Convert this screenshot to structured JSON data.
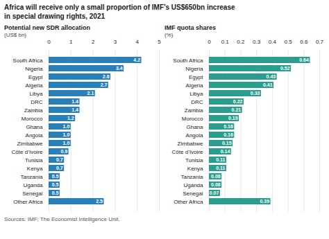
{
  "title": "Africa will receive only a small proportion of IMF’s US$650bn increase\nin special drawing rights, 2021",
  "source": "Sources: IMF; The Economist Intelligence Unit.",
  "chart_data": [
    {
      "type": "bar",
      "orientation": "horizontal",
      "title": "Potential new SDR allocation",
      "subtitle": "(US$ bn)",
      "categories": [
        "South Africa",
        "Nigeria",
        "Egypt",
        "Algeria",
        "Libya",
        "DRC",
        "Zambia",
        "Morocco",
        "Ghana",
        "Angola",
        "Zimbabwe",
        "Côte d’Ivoire",
        "Tunisia",
        "Kenya",
        "Tanzania",
        "Uganda",
        "Senegal",
        "Other Africa"
      ],
      "values": [
        4.2,
        3.4,
        2.8,
        2.7,
        2.1,
        1.4,
        1.4,
        1.2,
        1.0,
        1.0,
        1.0,
        0.9,
        0.7,
        0.7,
        0.5,
        0.5,
        0.5,
        2.5
      ],
      "value_labels": [
        "4.2",
        "3.4",
        "2.8",
        "2.7",
        "2.1",
        "1.4",
        "1.4",
        "1.2",
        "1.0",
        "1.0",
        "1.0",
        "0.9",
        "0.7",
        "0.7",
        "0.5",
        "0.5",
        "0.5",
        "2.5"
      ],
      "data_labels": true,
      "color": "#2980b9",
      "xlim": [
        0,
        5
      ],
      "xticks": [
        0,
        1,
        2,
        3,
        4,
        5
      ],
      "grid": true
    },
    {
      "type": "bar",
      "orientation": "horizontal",
      "title": "IMF quota shares",
      "subtitle": "(%)",
      "categories": [
        "South Africa",
        "Nigeria",
        "Egypt",
        "Algeria",
        "Libya",
        "DRC",
        "Zambia",
        "Morocco",
        "Ghana",
        "Angola",
        "Zimbabwe",
        "Côte d’Ivoire",
        "Tunisia",
        "Kenya",
        "Tanzania",
        "Uganda",
        "Senegal",
        "Other Africa"
      ],
      "values": [
        0.64,
        0.52,
        0.43,
        0.41,
        0.33,
        0.22,
        0.21,
        0.19,
        0.16,
        0.16,
        0.15,
        0.14,
        0.11,
        0.11,
        0.08,
        0.08,
        0.07,
        0.39
      ],
      "value_labels": [
        "0.64",
        "0.52",
        "0.43",
        "0.41",
        "0.33",
        "0.22",
        "0.21",
        "0.19",
        "0.16",
        "0.16",
        "0.15",
        "0.14",
        "0.11",
        "0.11",
        "0.08",
        "0.08",
        "0.07",
        "0.39"
      ],
      "data_labels": true,
      "color": "#2a9d8f",
      "xlim": [
        0,
        0.7
      ],
      "xticks": [
        0,
        0.1,
        0.2,
        0.3,
        0.4,
        0.5,
        0.6,
        0.7
      ],
      "grid": true
    }
  ]
}
